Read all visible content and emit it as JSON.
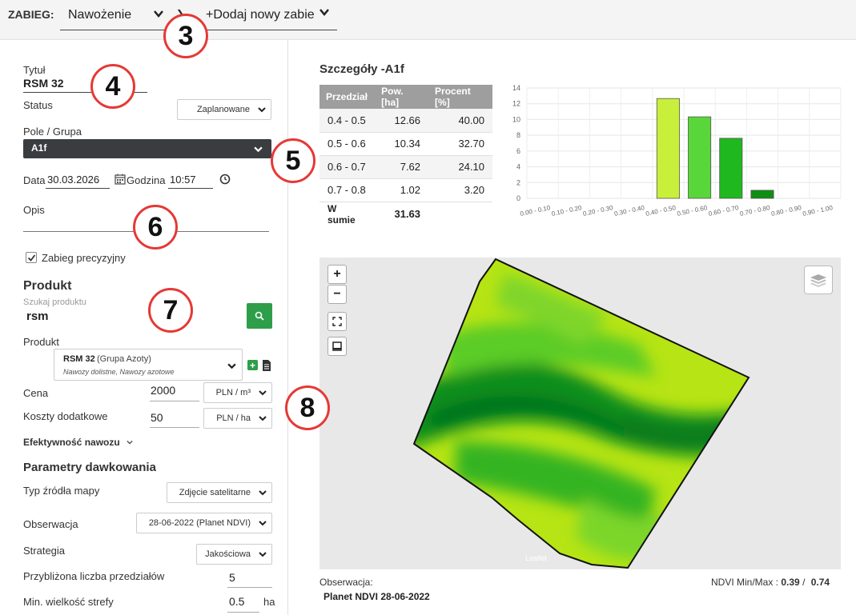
{
  "topbar": {
    "zabieg_label": "ZABIEG:",
    "zabieg_value": "Nawożenie",
    "add_new_label": "+Dodaj nowy zabie"
  },
  "form": {
    "title_label": "Tytuł",
    "title_value": "RSM 32",
    "status_label": "Status",
    "status_value": "Zaplanowane",
    "field_label": "Pole / Grupa",
    "field_value": "A1f",
    "date_label": "Data",
    "date_value": "30.03.2026",
    "time_label": "Godzina",
    "time_value": "10:57",
    "desc_label": "Opis",
    "precision_label": "Zabieg precyzyjny",
    "precision_checked": true
  },
  "product": {
    "section_title": "Produkt",
    "search_placeholder": "Szukaj produktu",
    "search_value": "rsm",
    "product_label": "Produkt",
    "product_name": "RSM 32",
    "product_group": "(Grupa Azoty)",
    "product_desc": "Nawozy dolistne, Nawozy azotowe",
    "price_label": "Cena",
    "price_value": "2000",
    "price_unit": "PLN / m³",
    "extra_cost_label": "Koszty dodatkowe",
    "extra_cost_value": "50",
    "extra_cost_unit": "PLN / ha",
    "efficiency_label": "Efektywność nawozu"
  },
  "dosing": {
    "section_title": "Parametry dawkowania",
    "source_label": "Typ źródła mapy",
    "source_value": "Zdjęcie satelitarne",
    "observation_label": "Obserwacja",
    "observation_value": "28-06-2022 (Planet NDVI)",
    "strategy_label": "Strategia",
    "strategy_value": "Jakościowa",
    "intervals_label": "Przybliżona liczba przedziałów",
    "intervals_value": "5",
    "min_zone_label": "Min. wielkość strefy",
    "min_zone_value": "0.5",
    "min_zone_unit": "ha"
  },
  "details": {
    "title": "Szczegóły -A1f",
    "headers": [
      "Przedział",
      "Pow. [ha]",
      "Procent [%]"
    ],
    "rows": [
      [
        "0.4 - 0.5",
        "12.66",
        "40.00"
      ],
      [
        "0.5 - 0.6",
        "10.34",
        "32.70"
      ],
      [
        "0.6 - 0.7",
        "7.62",
        "24.10"
      ],
      [
        "0.7 - 0.8",
        "1.02",
        "3.20"
      ]
    ],
    "total_label": "W sumie",
    "total_value": "31.63"
  },
  "chart_data": {
    "type": "bar",
    "categories": [
      "0.00 - 0.10",
      "0.10 - 0.20",
      "0.20 - 0.30",
      "0.30 - 0.40",
      "0.40 - 0.50",
      "0.50 - 0.60",
      "0.60 - 0.70",
      "0.70 - 0.80",
      "0.80 - 0.90",
      "0.90 - 1.00"
    ],
    "values": [
      0,
      0,
      0,
      0,
      12.66,
      10.34,
      7.62,
      1.02,
      0,
      0
    ],
    "colors": [
      "#c8f03a",
      "#c8f03a",
      "#c8f03a",
      "#c8f03a",
      "#c8f03a",
      "#58d63a",
      "#1fb81f",
      "#0e8e12",
      "#0e8e12",
      "#0e8e12"
    ],
    "yticks": [
      "0",
      "2",
      "4",
      "6",
      "8",
      "10",
      "12",
      "14"
    ],
    "ylim": [
      0,
      14
    ],
    "grid": true
  },
  "map": {
    "zoom_in": "+",
    "zoom_out": "−",
    "attribution": "Leaflet",
    "observation_label": "Obserwacja:",
    "observation_value": "Planet NDVI 28-06-2022",
    "ndvi_label": "NDVI Min/Max :",
    "ndvi_min": "0.39",
    "ndvi_sep": "/",
    "ndvi_max": "0.74"
  },
  "annotations": [
    "3",
    "4",
    "5",
    "6",
    "7",
    "8"
  ]
}
